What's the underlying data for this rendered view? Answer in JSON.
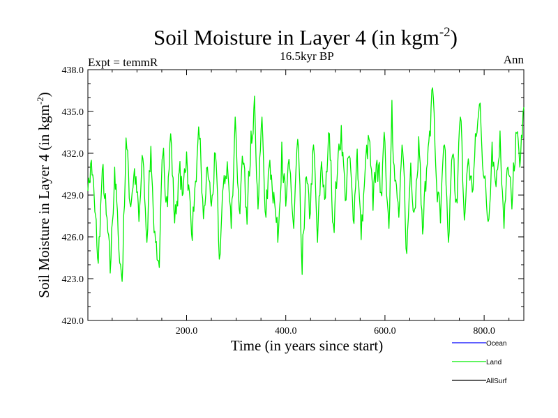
{
  "chart_data": {
    "type": "line",
    "title": "Soil Moisture in Layer 4 (in kgm",
    "title_sup": "-2",
    "title_end": ")",
    "subtitle": "16.5kyr BP",
    "left_label": "Expt = temmR",
    "right_label": "Ann",
    "xlabel": "Time (in years since start)",
    "ylabel": "Soil Moisture in Layer 4 (in kgm",
    "ylabel_sup": "-2",
    "ylabel_end": ")",
    "xlim": [
      1,
      880
    ],
    "ylim": [
      420,
      438
    ],
    "x_ticks": [
      200,
      400,
      600,
      800
    ],
    "x_tick_labels": [
      "200.0",
      "400.0",
      "600.0",
      "800.0"
    ],
    "y_ticks": [
      420,
      423,
      426,
      429,
      432,
      435,
      438
    ],
    "y_tick_labels": [
      "420.0",
      "423.0",
      "426.0",
      "429.0",
      "432.0",
      "435.0",
      "438.0"
    ],
    "series": [
      {
        "name": "Land",
        "color": "#00ee00",
        "keypoints": [
          [
            1,
            429.3
          ],
          [
            8,
            431.5
          ],
          [
            15,
            427.8
          ],
          [
            22,
            424.1
          ],
          [
            30,
            430.8
          ],
          [
            38,
            427.6
          ],
          [
            46,
            423.4
          ],
          [
            55,
            431.0
          ],
          [
            62,
            426.2
          ],
          [
            70,
            422.8
          ],
          [
            78,
            433.1
          ],
          [
            86,
            428.4
          ],
          [
            95,
            430.9
          ],
          [
            104,
            427.1
          ],
          [
            112,
            431.6
          ],
          [
            120,
            425.6
          ],
          [
            128,
            432.5
          ],
          [
            136,
            426.4
          ],
          [
            145,
            423.8
          ],
          [
            152,
            431.8
          ],
          [
            160,
            428.9
          ],
          [
            168,
            433.4
          ],
          [
            176,
            427.0
          ],
          [
            185,
            430.6
          ],
          [
            193,
            429.1
          ],
          [
            200,
            432.1
          ],
          [
            210,
            426.2
          ],
          [
            218,
            430.0
          ],
          [
            226,
            433.0
          ],
          [
            234,
            427.3
          ],
          [
            242,
            431.0
          ],
          [
            250,
            428.2
          ],
          [
            258,
            432.0
          ],
          [
            266,
            424.4
          ],
          [
            274,
            429.6
          ],
          [
            282,
            431.4
          ],
          [
            290,
            426.6
          ],
          [
            298,
            434.6
          ],
          [
            306,
            428.0
          ],
          [
            314,
            431.2
          ],
          [
            322,
            426.9
          ],
          [
            330,
            433.6
          ],
          [
            337,
            436.1
          ],
          [
            344,
            428.0
          ],
          [
            352,
            434.6
          ],
          [
            360,
            427.4
          ],
          [
            368,
            431.5
          ],
          [
            376,
            429.2
          ],
          [
            384,
            425.6
          ],
          [
            392,
            432.8
          ],
          [
            400,
            428.2
          ],
          [
            408,
            430.9
          ],
          [
            416,
            426.6
          ],
          [
            424,
            433.0
          ],
          [
            433,
            423.3
          ],
          [
            440,
            430.2
          ],
          [
            448,
            427.3
          ],
          [
            456,
            432.6
          ],
          [
            464,
            425.6
          ],
          [
            472,
            431.4
          ],
          [
            480,
            428.8
          ],
          [
            488,
            433.4
          ],
          [
            496,
            426.9
          ],
          [
            504,
            430.6
          ],
          [
            512,
            434.0
          ],
          [
            520,
            428.6
          ],
          [
            528,
            431.8
          ],
          [
            536,
            427.2
          ],
          [
            544,
            432.3
          ],
          [
            552,
            425.8
          ],
          [
            560,
            430.8
          ],
          [
            568,
            433.0
          ],
          [
            576,
            427.9
          ],
          [
            584,
            431.5
          ],
          [
            592,
            429.2
          ],
          [
            600,
            432.8
          ],
          [
            608,
            426.6
          ],
          [
            614,
            435.8
          ],
          [
            620,
            430.0
          ],
          [
            628,
            427.4
          ],
          [
            636,
            432.1
          ],
          [
            644,
            424.8
          ],
          [
            652,
            431.3
          ],
          [
            660,
            428.0
          ],
          [
            668,
            433.2
          ],
          [
            676,
            426.2
          ],
          [
            684,
            430.9
          ],
          [
            690,
            433.6
          ],
          [
            696,
            436.7
          ],
          [
            704,
            429.8
          ],
          [
            712,
            427.0
          ],
          [
            720,
            432.6
          ],
          [
            728,
            425.6
          ],
          [
            736,
            431.8
          ],
          [
            744,
            428.7
          ],
          [
            752,
            434.6
          ],
          [
            760,
            427.2
          ],
          [
            768,
            431.6
          ],
          [
            776,
            429.2
          ],
          [
            784,
            433.2
          ],
          [
            792,
            435.6
          ],
          [
            800,
            430.2
          ],
          [
            808,
            427.1
          ],
          [
            816,
            432.8
          ],
          [
            824,
            429.6
          ],
          [
            832,
            433.6
          ],
          [
            840,
            426.6
          ],
          [
            848,
            431.0
          ],
          [
            856,
            428.0
          ],
          [
            864,
            433.5
          ],
          [
            872,
            431.0
          ],
          [
            880,
            435.3
          ]
        ]
      }
    ],
    "legend": [
      {
        "name": "Ocean",
        "color": "#0000ff"
      },
      {
        "name": "Land",
        "color": "#00ee00"
      },
      {
        "name": "AllSurf",
        "color": "#000000"
      }
    ],
    "legend_position": "bottom-right",
    "grid": false
  }
}
